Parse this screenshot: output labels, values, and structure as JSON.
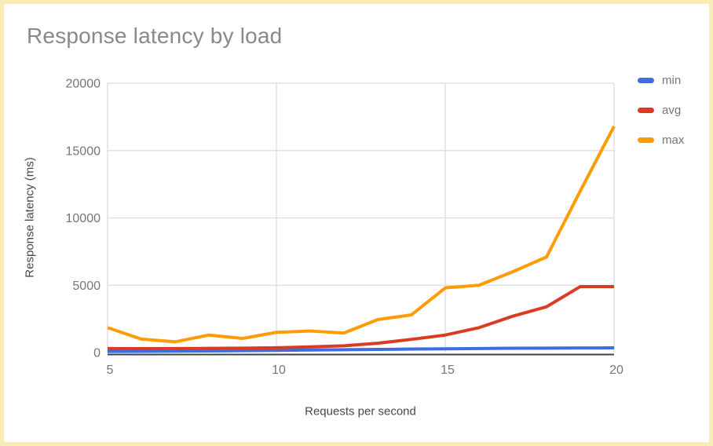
{
  "page": {
    "border_color": "#f9ecb4",
    "background_color": "#ffffff"
  },
  "chart_data": {
    "type": "line",
    "title": "Response latency by load",
    "xlabel": "Requests per second",
    "ylabel": "Response latency (ms)",
    "xlim": [
      5,
      20
    ],
    "ylim": [
      0,
      20000
    ],
    "grid": true,
    "legend_position": "right",
    "x_tick_values": [
      5,
      10,
      15,
      20
    ],
    "x_tick_labels": [
      "5",
      "10",
      "15",
      "20"
    ],
    "y_tick_values": [
      0,
      5000,
      10000,
      15000,
      20000
    ],
    "y_tick_labels": [
      "0",
      "5000",
      "10000",
      "15000",
      "20000"
    ],
    "x": [
      5,
      6,
      7,
      8,
      9,
      10,
      11,
      12,
      13,
      14,
      15,
      16,
      17,
      18,
      19,
      20
    ],
    "series": [
      {
        "name": "min",
        "color": "#3d6de1",
        "values": [
          80,
          90,
          100,
          120,
          140,
          160,
          190,
          210,
          230,
          260,
          280,
          300,
          320,
          330,
          340,
          350
        ]
      },
      {
        "name": "avg",
        "color": "#d93b23",
        "values": [
          300,
          290,
          300,
          310,
          330,
          360,
          420,
          500,
          690,
          980,
          1300,
          1850,
          2700,
          3400,
          4900,
          4900
        ]
      },
      {
        "name": "max",
        "color": "#ff9b05",
        "values": [
          1850,
          1000,
          800,
          1300,
          1050,
          1500,
          1600,
          1450,
          2450,
          2800,
          4800,
          5000,
          6000,
          7100,
          12000,
          16800
        ]
      }
    ]
  }
}
